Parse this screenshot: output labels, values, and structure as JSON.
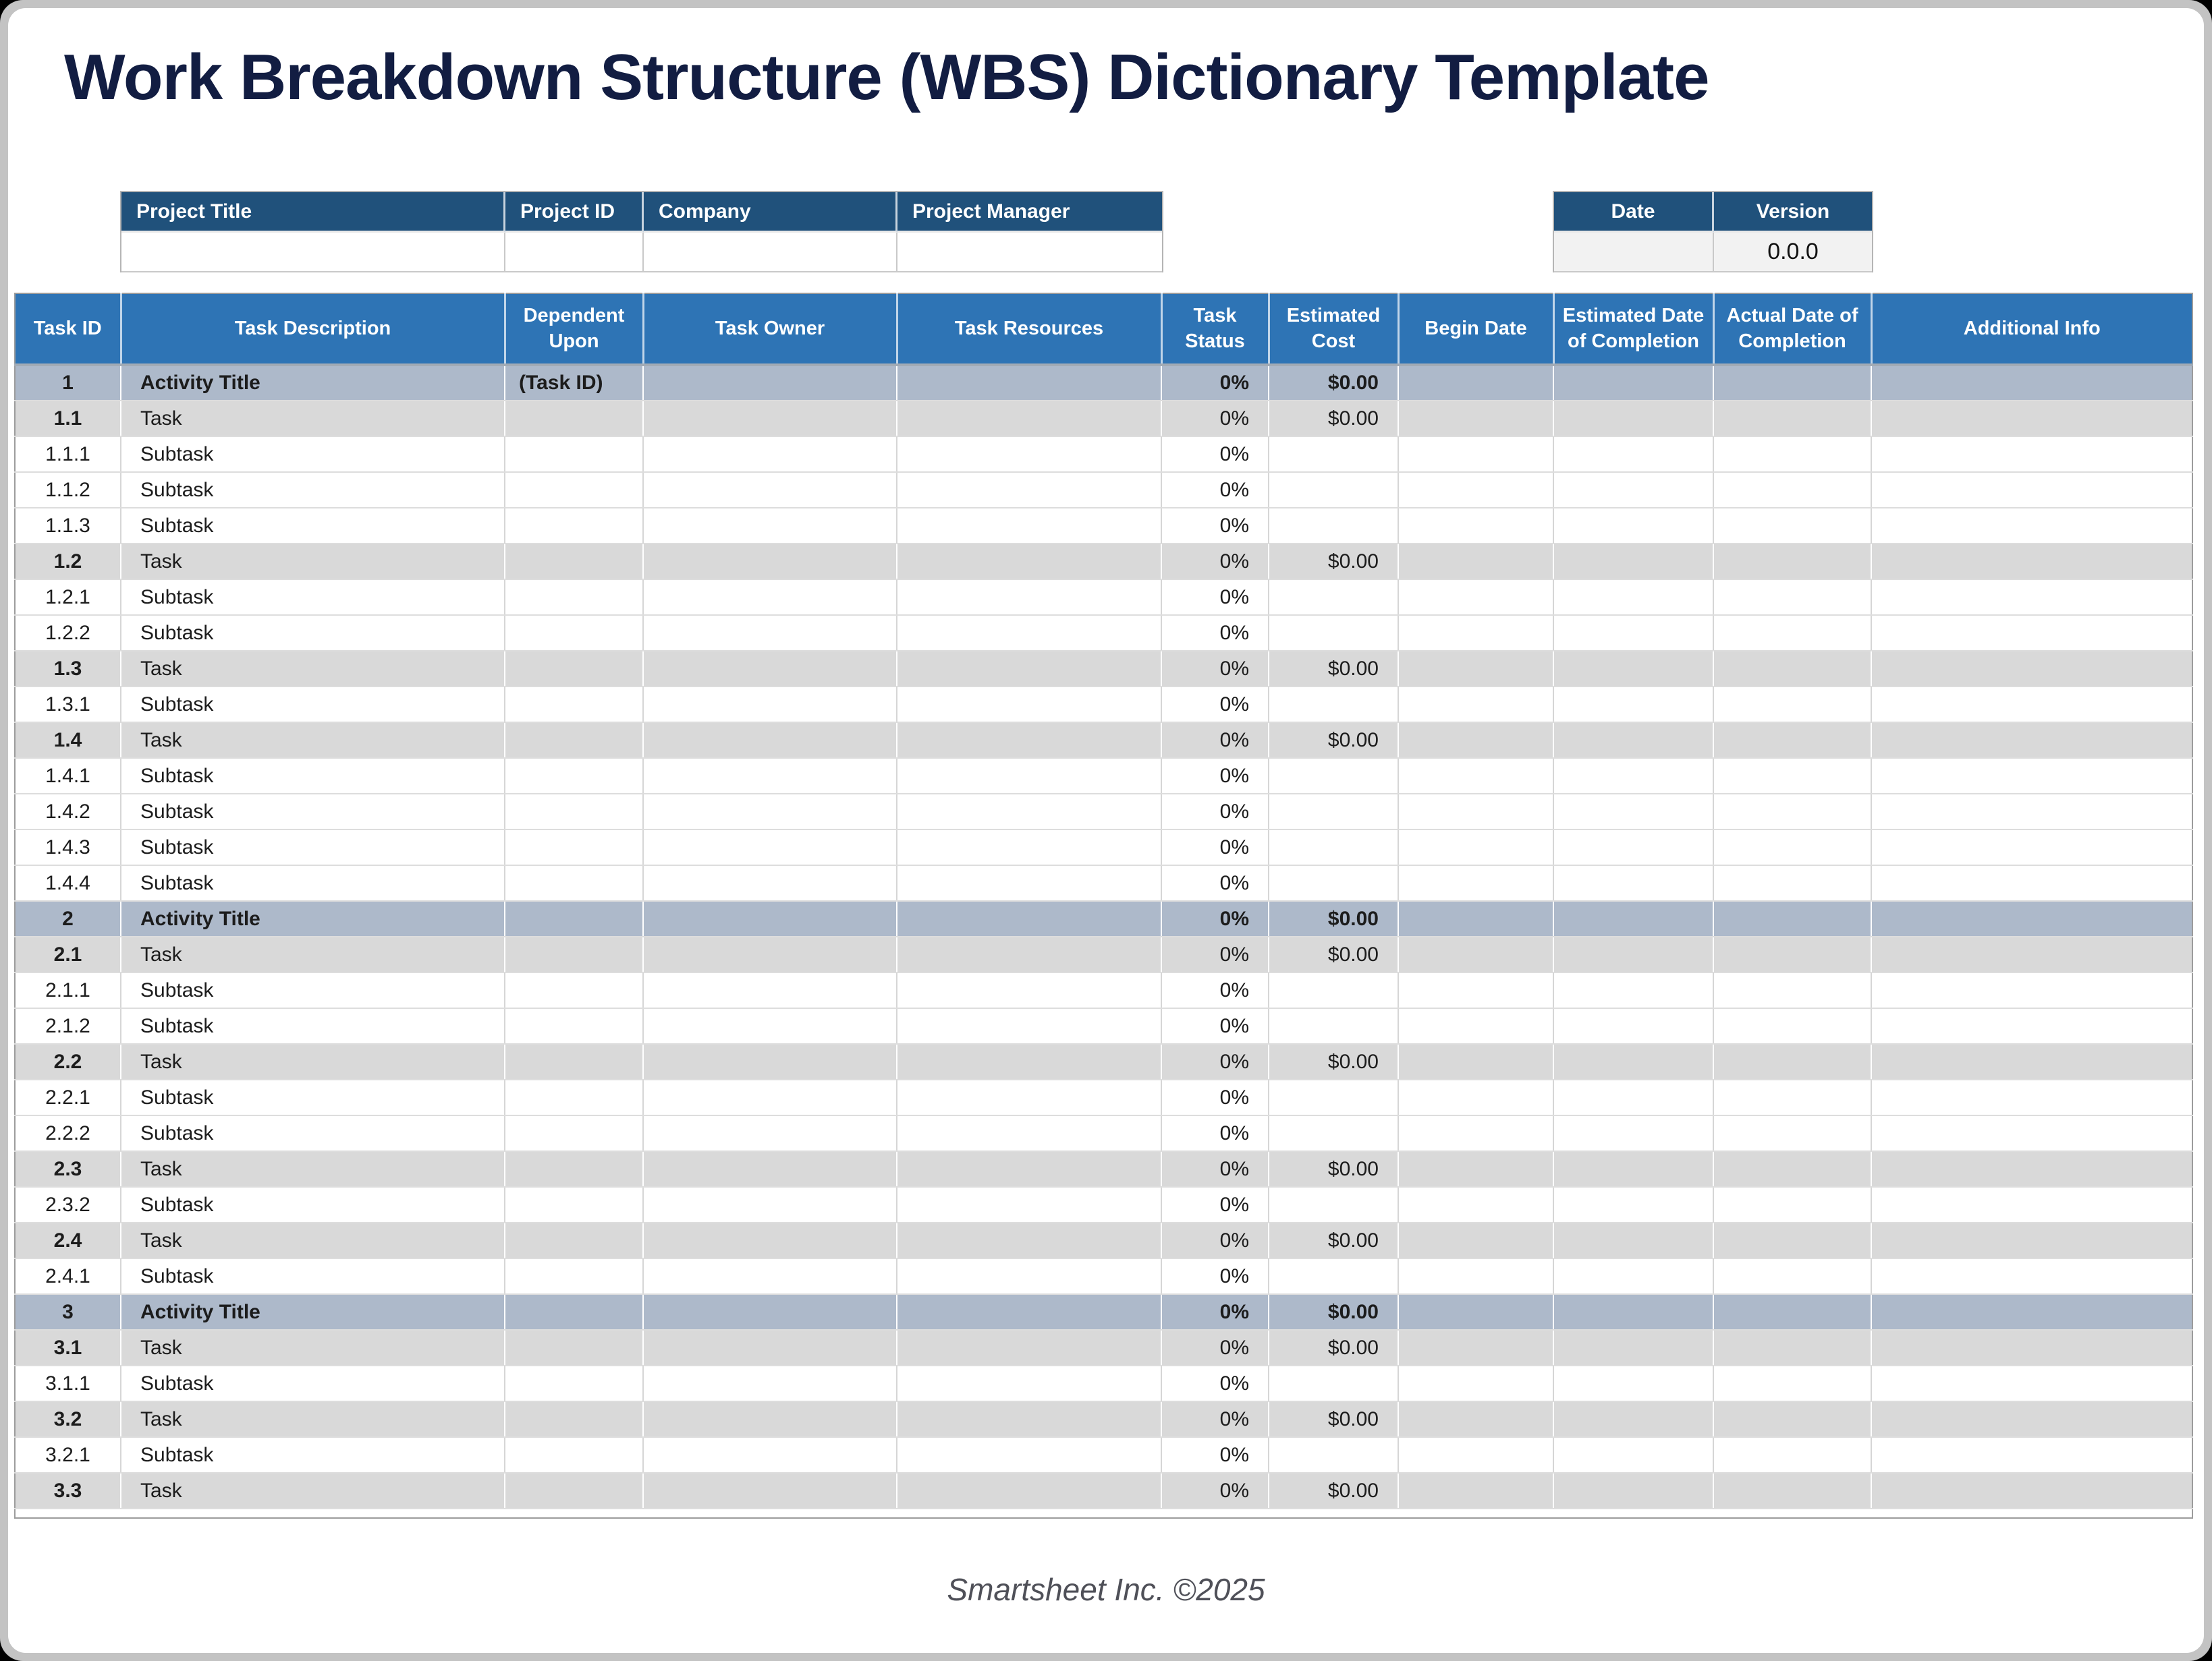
{
  "page": {
    "title": "Work Breakdown Structure (WBS) Dictionary Template",
    "footer": "Smartsheet Inc. ©2025"
  },
  "colors": {
    "title_navy": "#121d42",
    "meta_header_blue": "#20517b",
    "table_header_blue": "#2e74b5",
    "activity_row": "#adb9ca",
    "task_row": "#d9d9d9",
    "version_cell_bg": "#f2f2f2"
  },
  "project_info": {
    "headers": [
      "Project Title",
      "Project ID",
      "Company",
      "Project Manager"
    ],
    "values": [
      "",
      "",
      "",
      ""
    ]
  },
  "version_info": {
    "headers": [
      "Date",
      "Version"
    ],
    "values": [
      "",
      "0.0.0"
    ]
  },
  "main_table": {
    "columns": [
      "Task ID",
      "Task Description",
      "Dependent Upon",
      "Task Owner",
      "Task Resources",
      "Task Status",
      "Estimated Cost",
      "Begin Date",
      "Estimated Date of Completion",
      "Actual Date of Completion",
      "Additional Info"
    ],
    "rows": [
      {
        "id": "1",
        "desc": "Activity Title",
        "dep": "(Task ID)",
        "status": "0%",
        "cost": "$0.00",
        "type": "activity"
      },
      {
        "id": "1.1",
        "desc": "Task",
        "dep": "",
        "status": "0%",
        "cost": "$0.00",
        "type": "task"
      },
      {
        "id": "1.1.1",
        "desc": "Subtask",
        "dep": "",
        "status": "0%",
        "cost": "",
        "type": "subtask"
      },
      {
        "id": "1.1.2",
        "desc": "Subtask",
        "dep": "",
        "status": "0%",
        "cost": "",
        "type": "subtask"
      },
      {
        "id": "1.1.3",
        "desc": "Subtask",
        "dep": "",
        "status": "0%",
        "cost": "",
        "type": "subtask"
      },
      {
        "id": "1.2",
        "desc": "Task",
        "dep": "",
        "status": "0%",
        "cost": "$0.00",
        "type": "task"
      },
      {
        "id": "1.2.1",
        "desc": "Subtask",
        "dep": "",
        "status": "0%",
        "cost": "",
        "type": "subtask"
      },
      {
        "id": "1.2.2",
        "desc": "Subtask",
        "dep": "",
        "status": "0%",
        "cost": "",
        "type": "subtask"
      },
      {
        "id": "1.3",
        "desc": "Task",
        "dep": "",
        "status": "0%",
        "cost": "$0.00",
        "type": "task"
      },
      {
        "id": "1.3.1",
        "desc": "Subtask",
        "dep": "",
        "status": "0%",
        "cost": "",
        "type": "subtask"
      },
      {
        "id": "1.4",
        "desc": "Task",
        "dep": "",
        "status": "0%",
        "cost": "$0.00",
        "type": "task"
      },
      {
        "id": "1.4.1",
        "desc": "Subtask",
        "dep": "",
        "status": "0%",
        "cost": "",
        "type": "subtask"
      },
      {
        "id": "1.4.2",
        "desc": "Subtask",
        "dep": "",
        "status": "0%",
        "cost": "",
        "type": "subtask"
      },
      {
        "id": "1.4.3",
        "desc": "Subtask",
        "dep": "",
        "status": "0%",
        "cost": "",
        "type": "subtask"
      },
      {
        "id": "1.4.4",
        "desc": "Subtask",
        "dep": "",
        "status": "0%",
        "cost": "",
        "type": "subtask"
      },
      {
        "id": "2",
        "desc": "Activity Title",
        "dep": "",
        "status": "0%",
        "cost": "$0.00",
        "type": "activity"
      },
      {
        "id": "2.1",
        "desc": "Task",
        "dep": "",
        "status": "0%",
        "cost": "$0.00",
        "type": "task"
      },
      {
        "id": "2.1.1",
        "desc": "Subtask",
        "dep": "",
        "status": "0%",
        "cost": "",
        "type": "subtask"
      },
      {
        "id": "2.1.2",
        "desc": "Subtask",
        "dep": "",
        "status": "0%",
        "cost": "",
        "type": "subtask"
      },
      {
        "id": "2.2",
        "desc": "Task",
        "dep": "",
        "status": "0%",
        "cost": "$0.00",
        "type": "task"
      },
      {
        "id": "2.2.1",
        "desc": "Subtask",
        "dep": "",
        "status": "0%",
        "cost": "",
        "type": "subtask"
      },
      {
        "id": "2.2.2",
        "desc": "Subtask",
        "dep": "",
        "status": "0%",
        "cost": "",
        "type": "subtask"
      },
      {
        "id": "2.3",
        "desc": "Task",
        "dep": "",
        "status": "0%",
        "cost": "$0.00",
        "type": "task"
      },
      {
        "id": "2.3.2",
        "desc": "Subtask",
        "dep": "",
        "status": "0%",
        "cost": "",
        "type": "subtask"
      },
      {
        "id": "2.4",
        "desc": "Task",
        "dep": "",
        "status": "0%",
        "cost": "$0.00",
        "type": "task"
      },
      {
        "id": "2.4.1",
        "desc": "Subtask",
        "dep": "",
        "status": "0%",
        "cost": "",
        "type": "subtask"
      },
      {
        "id": "3",
        "desc": "Activity Title",
        "dep": "",
        "status": "0%",
        "cost": "$0.00",
        "type": "activity"
      },
      {
        "id": "3.1",
        "desc": "Task",
        "dep": "",
        "status": "0%",
        "cost": "$0.00",
        "type": "task"
      },
      {
        "id": "3.1.1",
        "desc": "Subtask",
        "dep": "",
        "status": "0%",
        "cost": "",
        "type": "subtask"
      },
      {
        "id": "3.2",
        "desc": "Task",
        "dep": "",
        "status": "0%",
        "cost": "$0.00",
        "type": "task"
      },
      {
        "id": "3.2.1",
        "desc": "Subtask",
        "dep": "",
        "status": "0%",
        "cost": "",
        "type": "subtask"
      },
      {
        "id": "3.3",
        "desc": "Task",
        "dep": "",
        "status": "0%",
        "cost": "$0.00",
        "type": "task"
      }
    ]
  }
}
